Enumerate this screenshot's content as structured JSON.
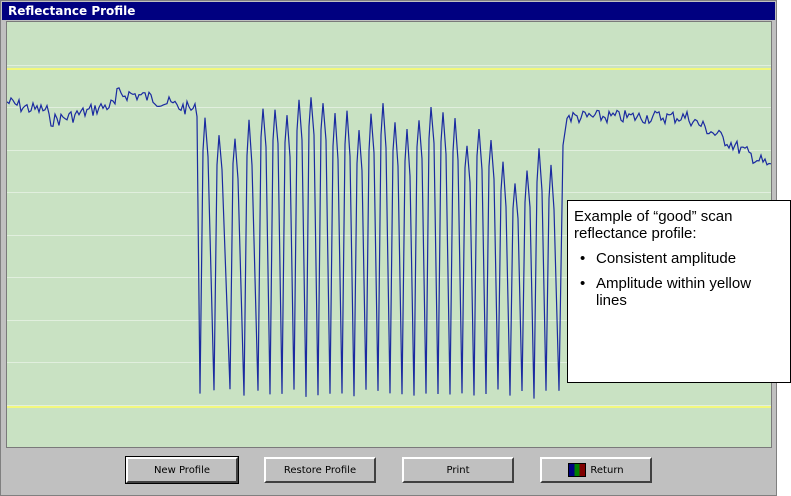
{
  "window": {
    "title": "Reflectance Profile"
  },
  "plot": {
    "background_color": "#c9e2c3",
    "gridline_color": "#ffffff",
    "limit_line_color": "#ffff66",
    "trace_color": "#1a2aa0"
  },
  "buttons": {
    "new_profile": "New Profile",
    "restore_profile": "Restore Profile",
    "print": "Print",
    "return": "Return"
  },
  "callout": {
    "heading": "Example of “good” scan reflectance profile:",
    "bullets": [
      "Consistent amplitude",
      "Amplitude within yellow lines"
    ],
    "bullet_glyph": "•"
  }
}
